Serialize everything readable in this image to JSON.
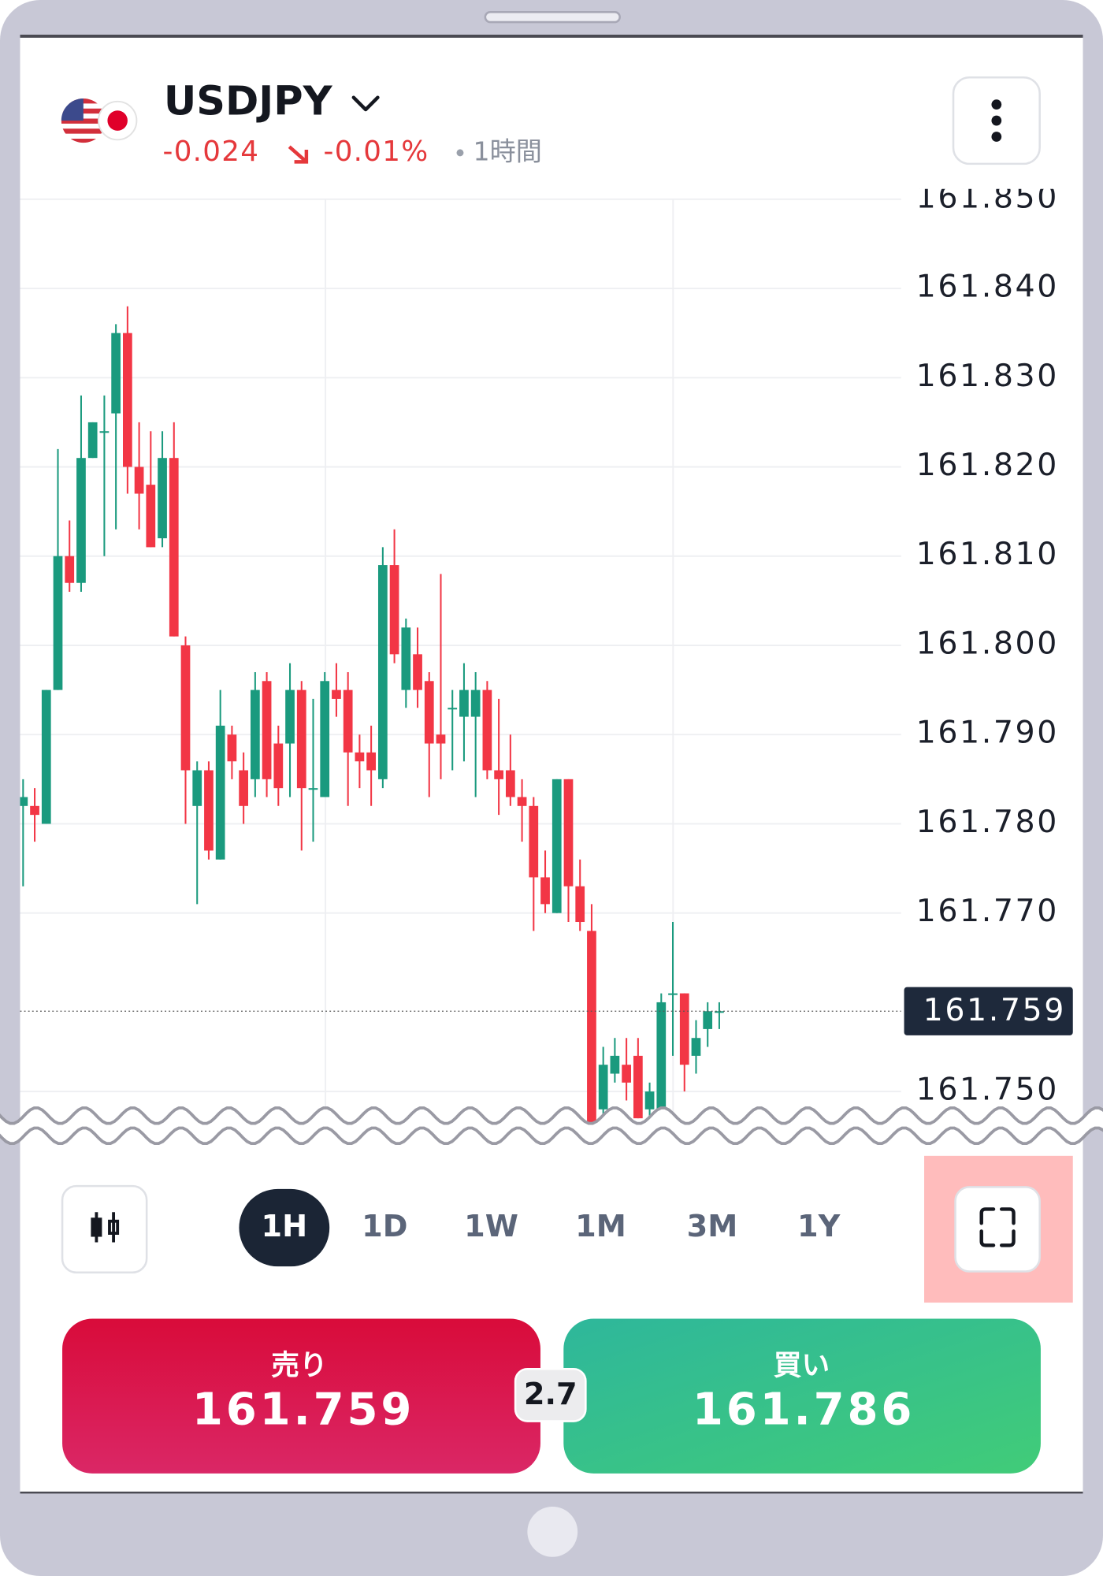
{
  "header": {
    "symbol": "USDJPY",
    "change": "-0.024",
    "change_percent": "-0.01%",
    "interval": "1時間"
  },
  "chart_data": {
    "type": "candlestick",
    "open": [
      161.782,
      161.782,
      161.78,
      161.795,
      161.81,
      161.807,
      161.821,
      161.824,
      161.826,
      161.835,
      161.82,
      161.818,
      161.812,
      161.821,
      161.8,
      161.782,
      161.786,
      161.776,
      161.79,
      161.786,
      161.785,
      161.796,
      161.789,
      161.789,
      161.795,
      161.784,
      161.783,
      161.795,
      161.795,
      161.788,
      161.788,
      161.785,
      161.809,
      161.795,
      161.799,
      161.796,
      161.79,
      161.793,
      161.792,
      161.792,
      161.795,
      161.786,
      161.786,
      161.783,
      161.782,
      161.774,
      161.77,
      161.785,
      161.773,
      161.768,
      161.748,
      161.752,
      161.753,
      161.754,
      161.748,
      161.748,
      161.761,
      161.761,
      161.754,
      161.757,
      161.759
    ],
    "high": [
      161.785,
      161.784,
      161.795,
      161.822,
      161.814,
      161.828,
      161.825,
      161.828,
      161.836,
      161.838,
      161.825,
      161.824,
      161.824,
      161.825,
      161.801,
      161.787,
      161.787,
      161.795,
      161.791,
      161.788,
      161.797,
      161.797,
      161.791,
      161.798,
      161.796,
      161.794,
      161.797,
      161.798,
      161.797,
      161.79,
      161.791,
      161.811,
      161.813,
      161.803,
      161.802,
      161.797,
      161.808,
      161.795,
      161.798,
      161.797,
      161.796,
      161.794,
      161.79,
      161.785,
      161.783,
      161.777,
      161.785,
      161.785,
      161.776,
      161.771,
      161.755,
      161.756,
      161.756,
      161.756,
      161.751,
      161.761,
      161.769,
      161.761,
      161.758,
      161.76,
      161.76
    ],
    "low": [
      161.773,
      161.778,
      161.78,
      161.795,
      161.806,
      161.806,
      161.821,
      161.81,
      161.813,
      161.817,
      161.813,
      161.811,
      161.811,
      161.801,
      161.78,
      161.771,
      161.776,
      161.776,
      161.785,
      161.78,
      161.783,
      161.783,
      161.782,
      161.783,
      161.777,
      161.778,
      161.783,
      161.792,
      161.782,
      161.784,
      161.782,
      161.784,
      161.798,
      161.793,
      161.793,
      161.783,
      161.785,
      161.786,
      161.787,
      161.783,
      161.785,
      161.781,
      161.782,
      161.778,
      161.768,
      161.77,
      161.77,
      161.769,
      161.768,
      161.745,
      161.747,
      161.751,
      161.749,
      161.747,
      161.747,
      161.747,
      161.754,
      161.75,
      161.752,
      161.755,
      161.757
    ],
    "close": [
      161.783,
      161.781,
      161.795,
      161.81,
      161.807,
      161.821,
      161.825,
      161.824,
      161.835,
      161.82,
      161.817,
      161.811,
      161.821,
      161.801,
      161.786,
      161.786,
      161.777,
      161.791,
      161.787,
      161.782,
      161.795,
      161.785,
      161.784,
      161.795,
      161.784,
      161.784,
      161.796,
      161.794,
      161.788,
      161.787,
      161.786,
      161.809,
      161.799,
      161.802,
      161.795,
      161.789,
      161.789,
      161.793,
      161.795,
      161.795,
      161.786,
      161.785,
      161.783,
      161.782,
      161.774,
      161.771,
      161.785,
      161.773,
      161.769,
      161.746,
      161.753,
      161.754,
      161.751,
      161.747,
      161.75,
      161.76,
      161.761,
      161.753,
      161.756,
      161.759,
      161.759
    ],
    "up_color": "#1a9a7e",
    "down_color": "#f23645",
    "ylim": [
      161.747,
      161.85
    ],
    "yticks": [
      {
        "value": 161.85,
        "label": "161.850"
      },
      {
        "value": 161.84,
        "label": "161.840"
      },
      {
        "value": 161.83,
        "label": "161.830"
      },
      {
        "value": 161.82,
        "label": "161.820"
      },
      {
        "value": 161.81,
        "label": "161.810"
      },
      {
        "value": 161.8,
        "label": "161.800"
      },
      {
        "value": 161.79,
        "label": "161.790"
      },
      {
        "value": 161.78,
        "label": "161.780"
      },
      {
        "value": 161.77,
        "label": "161.770"
      },
      {
        "value": 161.75,
        "label": "161.750"
      }
    ],
    "grid": true,
    "last_price": 161.759
  },
  "timeframes": [
    "1H",
    "1D",
    "1W",
    "1M",
    "3M",
    "1Y"
  ],
  "trade": {
    "sell": {
      "label": "売り",
      "price": "161.759"
    },
    "spread": "2.7",
    "buy": {
      "label": "買い",
      "price": "161.786"
    }
  }
}
